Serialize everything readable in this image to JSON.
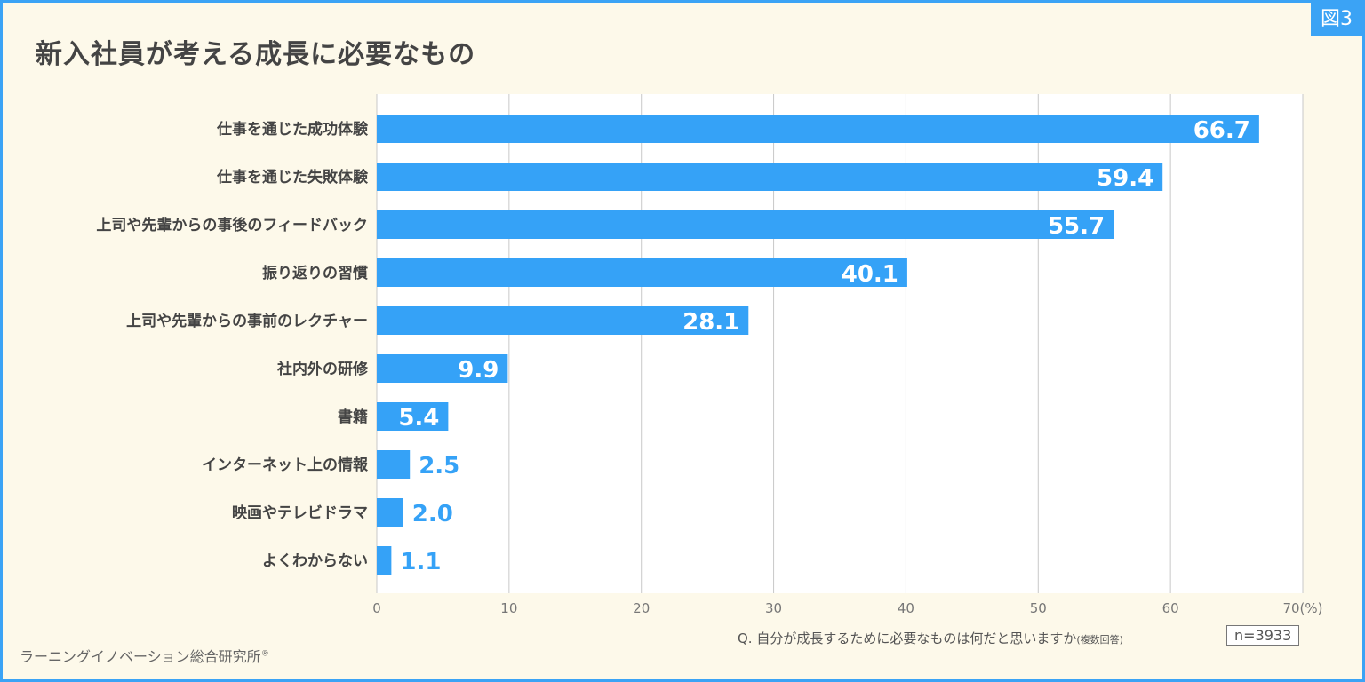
{
  "figure_tag": "図3",
  "chart_data": {
    "type": "bar",
    "orientation": "horizontal",
    "title": "新入社員が考える成長に必要なもの",
    "categories": [
      "仕事を通じた成功体験",
      "仕事を通じた失敗体験",
      "上司や先輩からの事後のフィードバック",
      "振り返りの習慣",
      "上司や先輩からの事前のレクチャー",
      "社内外の研修",
      "書籍",
      "インターネット上の情報",
      "映画やテレビドラマ",
      "よくわからない"
    ],
    "values": [
      66.7,
      59.4,
      55.7,
      40.1,
      28.1,
      9.9,
      5.4,
      2.5,
      2.0,
      1.1
    ],
    "value_labels": [
      "66.7",
      "59.4",
      "55.7",
      "40.1",
      "28.1",
      "9.9",
      "5.4",
      "2.5",
      "2.0",
      "1.1"
    ],
    "xlim": [
      0,
      70
    ],
    "xticks": [
      "0",
      "10",
      "20",
      "30",
      "40",
      "50",
      "60",
      "70(%)"
    ],
    "grid": true,
    "bar_color": "#35a2f7"
  },
  "question": "Q. 自分が成長するために必要なものは何だと思いますか",
  "question_note": "(複数回答)",
  "sample_size": "n=3933",
  "source": "ラーニングイノベーション総合研究所",
  "source_mark": "®"
}
